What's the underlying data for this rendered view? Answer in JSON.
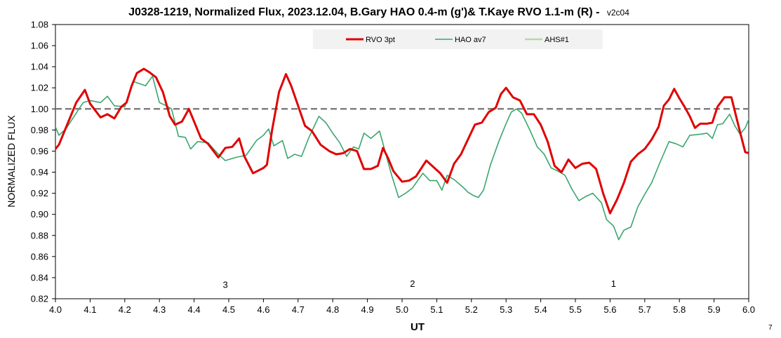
{
  "chart_data": {
    "type": "line",
    "title": "J0328-1219, Normalized Flux, 2023.12.04, B.Gary HAO 0.4-m (g')& T.Kaye RVO 1.1-m (R) -",
    "title_suffix": "v2c04",
    "xlabel": "UT",
    "ylabel": "NORMALIZED FLUX",
    "xlim": [
      4.0,
      6.0
    ],
    "ylim": [
      0.82,
      1.08
    ],
    "x_ticks": [
      "4.0",
      "4.1",
      "4.2",
      "4.3",
      "4.4",
      "4.5",
      "4.6",
      "4.7",
      "4.8",
      "4.9",
      "5.0",
      "5.1",
      "5.2",
      "5.3",
      "5.4",
      "5.5",
      "5.6",
      "5.7",
      "5.8",
      "5.9",
      "6.0"
    ],
    "y_ticks": [
      "0.82",
      "0.84",
      "0.86",
      "0.88",
      "0.90",
      "0.92",
      "0.94",
      "0.96",
      "0.98",
      "1.00",
      "1.02",
      "1.04",
      "1.06",
      "1.08"
    ],
    "reference_line": 1.0,
    "grid": false,
    "legend_position": "top",
    "annotations": [
      {
        "text": "3",
        "x": 4.49,
        "y": 0.829
      },
      {
        "text": "2",
        "x": 5.03,
        "y": 0.83
      },
      {
        "text": "1",
        "x": 5.61,
        "y": 0.83
      }
    ],
    "corner_label": "7",
    "series": [
      {
        "name": "RVO 3pt",
        "color": "#e00000",
        "line_width": 3,
        "points": [
          [
            4.0,
            0.962
          ],
          [
            4.01,
            0.966
          ],
          [
            4.03,
            0.982
          ],
          [
            4.06,
            1.006
          ],
          [
            4.085,
            1.018
          ],
          [
            4.1,
            1.005
          ],
          [
            4.13,
            0.992
          ],
          [
            4.15,
            0.995
          ],
          [
            4.17,
            0.991
          ],
          [
            4.19,
            1.002
          ],
          [
            4.205,
            1.006
          ],
          [
            4.22,
            1.022
          ],
          [
            4.235,
            1.034
          ],
          [
            4.255,
            1.038
          ],
          [
            4.27,
            1.035
          ],
          [
            4.29,
            1.03
          ],
          [
            4.31,
            1.016
          ],
          [
            4.33,
            0.993
          ],
          [
            4.345,
            0.985
          ],
          [
            4.365,
            0.988
          ],
          [
            4.385,
            1.0
          ],
          [
            4.4,
            0.988
          ],
          [
            4.42,
            0.972
          ],
          [
            4.44,
            0.967
          ],
          [
            4.47,
            0.954
          ],
          [
            4.49,
            0.963
          ],
          [
            4.51,
            0.964
          ],
          [
            4.53,
            0.972
          ],
          [
            4.545,
            0.955
          ],
          [
            4.57,
            0.939
          ],
          [
            4.6,
            0.944
          ],
          [
            4.61,
            0.947
          ],
          [
            4.625,
            0.98
          ],
          [
            4.645,
            1.016
          ],
          [
            4.665,
            1.033
          ],
          [
            4.68,
            1.022
          ],
          [
            4.7,
            1.003
          ],
          [
            4.72,
            0.984
          ],
          [
            4.74,
            0.979
          ],
          [
            4.765,
            0.966
          ],
          [
            4.79,
            0.96
          ],
          [
            4.81,
            0.957
          ],
          [
            4.83,
            0.958
          ],
          [
            4.85,
            0.962
          ],
          [
            4.87,
            0.96
          ],
          [
            4.89,
            0.943
          ],
          [
            4.91,
            0.943
          ],
          [
            4.93,
            0.946
          ],
          [
            4.945,
            0.963
          ],
          [
            4.96,
            0.953
          ],
          [
            4.975,
            0.941
          ],
          [
            4.99,
            0.935
          ],
          [
            5.0,
            0.931
          ],
          [
            5.02,
            0.932
          ],
          [
            5.04,
            0.936
          ],
          [
            5.07,
            0.951
          ],
          [
            5.09,
            0.945
          ],
          [
            5.11,
            0.939
          ],
          [
            5.13,
            0.93
          ],
          [
            5.15,
            0.948
          ],
          [
            5.17,
            0.957
          ],
          [
            5.19,
            0.971
          ],
          [
            5.21,
            0.985
          ],
          [
            5.23,
            0.987
          ],
          [
            5.25,
            0.997
          ],
          [
            5.27,
            1.001
          ],
          [
            5.285,
            1.014
          ],
          [
            5.3,
            1.02
          ],
          [
            5.32,
            1.011
          ],
          [
            5.34,
            1.008
          ],
          [
            5.36,
            0.995
          ],
          [
            5.38,
            0.995
          ],
          [
            5.4,
            0.985
          ],
          [
            5.42,
            0.969
          ],
          [
            5.44,
            0.946
          ],
          [
            5.46,
            0.94
          ],
          [
            5.48,
            0.952
          ],
          [
            5.5,
            0.944
          ],
          [
            5.52,
            0.948
          ],
          [
            5.54,
            0.949
          ],
          [
            5.56,
            0.943
          ],
          [
            5.58,
            0.92
          ],
          [
            5.6,
            0.901
          ],
          [
            5.62,
            0.914
          ],
          [
            5.64,
            0.93
          ],
          [
            5.66,
            0.95
          ],
          [
            5.68,
            0.957
          ],
          [
            5.7,
            0.962
          ],
          [
            5.72,
            0.971
          ],
          [
            5.74,
            0.983
          ],
          [
            5.755,
            1.003
          ],
          [
            5.77,
            1.009
          ],
          [
            5.785,
            1.019
          ],
          [
            5.8,
            1.01
          ],
          [
            5.815,
            1.002
          ],
          [
            5.83,
            0.993
          ],
          [
            5.845,
            0.982
          ],
          [
            5.86,
            0.986
          ],
          [
            5.88,
            0.986
          ],
          [
            5.895,
            0.987
          ],
          [
            5.91,
            1.002
          ],
          [
            5.93,
            1.011
          ],
          [
            5.95,
            1.011
          ],
          [
            5.975,
            0.978
          ],
          [
            5.99,
            0.959
          ],
          [
            6.0,
            0.958
          ]
        ]
      },
      {
        "name": "HAO av7",
        "color": "#3aa66e",
        "line_width": 1.6,
        "points": [
          [
            4.0,
            0.983
          ],
          [
            4.01,
            0.975
          ],
          [
            4.03,
            0.981
          ],
          [
            4.05,
            0.991
          ],
          [
            4.08,
            1.006
          ],
          [
            4.1,
            1.008
          ],
          [
            4.13,
            1.006
          ],
          [
            4.15,
            1.012
          ],
          [
            4.17,
            1.003
          ],
          [
            4.2,
            1.002
          ],
          [
            4.225,
            1.026
          ],
          [
            4.26,
            1.022
          ],
          [
            4.28,
            1.031
          ],
          [
            4.3,
            1.006
          ],
          [
            4.32,
            1.003
          ],
          [
            4.335,
            1.0
          ],
          [
            4.355,
            0.974
          ],
          [
            4.375,
            0.973
          ],
          [
            4.39,
            0.962
          ],
          [
            4.41,
            0.969
          ],
          [
            4.44,
            0.968
          ],
          [
            4.47,
            0.957
          ],
          [
            4.49,
            0.951
          ],
          [
            4.52,
            0.954
          ],
          [
            4.55,
            0.956
          ],
          [
            4.58,
            0.97
          ],
          [
            4.6,
            0.975
          ],
          [
            4.615,
            0.981
          ],
          [
            4.63,
            0.965
          ],
          [
            4.655,
            0.97
          ],
          [
            4.67,
            0.953
          ],
          [
            4.69,
            0.957
          ],
          [
            4.71,
            0.955
          ],
          [
            4.73,
            0.972
          ],
          [
            4.76,
            0.993
          ],
          [
            4.78,
            0.987
          ],
          [
            4.8,
            0.977
          ],
          [
            4.82,
            0.968
          ],
          [
            4.84,
            0.955
          ],
          [
            4.86,
            0.964
          ],
          [
            4.875,
            0.962
          ],
          [
            4.89,
            0.977
          ],
          [
            4.91,
            0.972
          ],
          [
            4.935,
            0.979
          ],
          [
            4.955,
            0.955
          ],
          [
            4.97,
            0.937
          ],
          [
            4.99,
            0.916
          ],
          [
            5.01,
            0.92
          ],
          [
            5.03,
            0.925
          ],
          [
            5.06,
            0.939
          ],
          [
            5.08,
            0.932
          ],
          [
            5.1,
            0.932
          ],
          [
            5.115,
            0.923
          ],
          [
            5.13,
            0.937
          ],
          [
            5.15,
            0.933
          ],
          [
            5.175,
            0.926
          ],
          [
            5.19,
            0.921
          ],
          [
            5.205,
            0.918
          ],
          [
            5.22,
            0.916
          ],
          [
            5.235,
            0.923
          ],
          [
            5.255,
            0.947
          ],
          [
            5.28,
            0.97
          ],
          [
            5.3,
            0.986
          ],
          [
            5.315,
            0.997
          ],
          [
            5.33,
            1.0
          ],
          [
            5.345,
            0.996
          ],
          [
            5.37,
            0.979
          ],
          [
            5.39,
            0.964
          ],
          [
            5.41,
            0.957
          ],
          [
            5.43,
            0.944
          ],
          [
            5.45,
            0.941
          ],
          [
            5.47,
            0.937
          ],
          [
            5.49,
            0.924
          ],
          [
            5.51,
            0.913
          ],
          [
            5.53,
            0.917
          ],
          [
            5.55,
            0.92
          ],
          [
            5.575,
            0.911
          ],
          [
            5.59,
            0.895
          ],
          [
            5.61,
            0.889
          ],
          [
            5.625,
            0.876
          ],
          [
            5.64,
            0.885
          ],
          [
            5.66,
            0.888
          ],
          [
            5.68,
            0.907
          ],
          [
            5.7,
            0.919
          ],
          [
            5.72,
            0.93
          ],
          [
            5.745,
            0.95
          ],
          [
            5.77,
            0.969
          ],
          [
            5.79,
            0.967
          ],
          [
            5.81,
            0.964
          ],
          [
            5.83,
            0.975
          ],
          [
            5.86,
            0.976
          ],
          [
            5.88,
            0.977
          ],
          [
            5.895,
            0.972
          ],
          [
            5.91,
            0.985
          ],
          [
            5.925,
            0.986
          ],
          [
            5.945,
            0.995
          ],
          [
            5.96,
            0.984
          ],
          [
            5.975,
            0.976
          ],
          [
            5.99,
            0.982
          ],
          [
            6.0,
            0.99
          ],
          [
            6.01,
            0.997
          ],
          [
            6.02,
            0.985
          ],
          [
            6.03,
            0.985
          ]
        ]
      },
      {
        "name": "AHS#1",
        "color": "#b5d9a0",
        "line_width": 2.5,
        "points": []
      }
    ]
  }
}
